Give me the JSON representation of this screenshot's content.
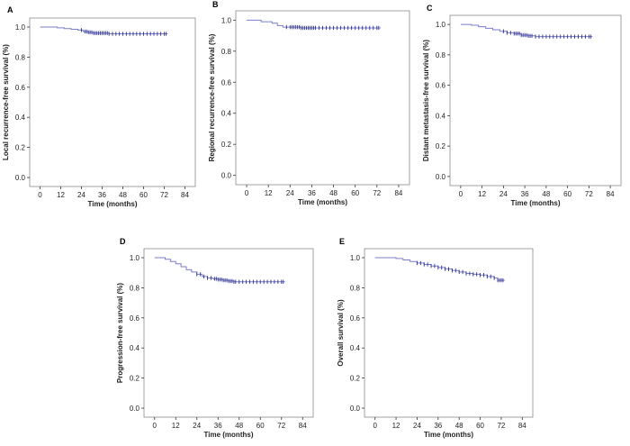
{
  "chart_data": [
    {
      "panel": "A",
      "type": "line",
      "title": "",
      "xlabel": "Time (months)",
      "ylabel": "Local recurrence-free survival (%)",
      "x_ticks": [
        0,
        12,
        24,
        36,
        48,
        60,
        72,
        84
      ],
      "y_ticks": [
        "0.0",
        "0.2",
        "0.4",
        "0.6",
        "0.8",
        "1.0"
      ],
      "xlim": [
        -6,
        90
      ],
      "ylim": [
        -0.06,
        1.06
      ],
      "series": [
        {
          "name": "Local recurrence-free survival",
          "x": [
            0,
            10,
            14,
            18,
            22,
            25,
            28,
            31,
            40,
            74
          ],
          "y": [
            1.0,
            0.995,
            0.99,
            0.985,
            0.98,
            0.97,
            0.965,
            0.96,
            0.955,
            0.955
          ],
          "censored_x": [
            24,
            26,
            27,
            28,
            29,
            30,
            31,
            32,
            33,
            34,
            35,
            36,
            37,
            38,
            39,
            40,
            42,
            44,
            46,
            48,
            50,
            52,
            54,
            56,
            58,
            60,
            62,
            64,
            66,
            68,
            70,
            72,
            73
          ]
        }
      ]
    },
    {
      "panel": "B",
      "type": "line",
      "title": "",
      "xlabel": "Time (months)",
      "ylabel": "Regional recurrence-free survival (%)",
      "x_ticks": [
        0,
        12,
        24,
        36,
        48,
        60,
        72,
        84
      ],
      "y_ticks": [
        "0.0",
        "0.2",
        "0.4",
        "0.6",
        "0.8",
        "1.0"
      ],
      "xlim": [
        -6,
        90
      ],
      "ylim": [
        -0.06,
        1.06
      ],
      "series": [
        {
          "name": "Regional recurrence-free survival",
          "x": [
            0,
            8,
            14,
            17,
            20,
            24,
            30,
            74
          ],
          "y": [
            1.0,
            0.99,
            0.98,
            0.965,
            0.955,
            0.955,
            0.95,
            0.95
          ],
          "censored_x": [
            22,
            24,
            25,
            26,
            27,
            28,
            29,
            30,
            31,
            32,
            33,
            34,
            35,
            36,
            37,
            38,
            40,
            42,
            44,
            46,
            48,
            50,
            52,
            54,
            56,
            58,
            60,
            62,
            64,
            66,
            68,
            70,
            72,
            73
          ]
        }
      ]
    },
    {
      "panel": "C",
      "type": "line",
      "title": "",
      "xlabel": "Time (months)",
      "ylabel": "Distant metastasis-free survival (%)",
      "x_ticks": [
        0,
        12,
        24,
        36,
        48,
        60,
        72,
        84
      ],
      "y_ticks": [
        "0.0",
        "0.2",
        "0.4",
        "0.6",
        "0.8",
        "1.0"
      ],
      "xlim": [
        -6,
        90
      ],
      "ylim": [
        -0.06,
        1.06
      ],
      "series": [
        {
          "name": "Distant metastasis-free survival",
          "x": [
            0,
            6,
            10,
            14,
            18,
            22,
            26,
            30,
            34,
            38,
            42,
            74
          ],
          "y": [
            1.0,
            0.995,
            0.985,
            0.975,
            0.965,
            0.955,
            0.945,
            0.94,
            0.93,
            0.925,
            0.92,
            0.92
          ],
          "censored_x": [
            24,
            26,
            28,
            30,
            31,
            32,
            33,
            34,
            35,
            36,
            37,
            38,
            39,
            40,
            42,
            44,
            46,
            48,
            50,
            52,
            54,
            56,
            58,
            60,
            62,
            64,
            66,
            68,
            70,
            72,
            73
          ]
        }
      ]
    },
    {
      "panel": "D",
      "type": "line",
      "title": "",
      "xlabel": "Time (months)",
      "ylabel": "Progression-free survival (%)",
      "x_ticks": [
        0,
        12,
        24,
        36,
        48,
        60,
        72,
        84
      ],
      "y_ticks": [
        "0.0",
        "0.2",
        "0.4",
        "0.6",
        "0.8",
        "1.0"
      ],
      "xlim": [
        -6,
        90
      ],
      "ylim": [
        -0.06,
        1.06
      ],
      "series": [
        {
          "name": "Progression-free survival",
          "x": [
            0,
            6,
            9,
            12,
            15,
            18,
            21,
            24,
            27,
            30,
            33,
            36,
            39,
            42,
            45,
            74
          ],
          "y": [
            1.0,
            0.99,
            0.975,
            0.96,
            0.94,
            0.92,
            0.905,
            0.89,
            0.875,
            0.865,
            0.86,
            0.855,
            0.85,
            0.845,
            0.84,
            0.84
          ],
          "censored_x": [
            24,
            26,
            28,
            30,
            32,
            34,
            35,
            36,
            37,
            38,
            39,
            40,
            41,
            42,
            43,
            44,
            45,
            46,
            48,
            50,
            52,
            54,
            56,
            58,
            60,
            62,
            64,
            66,
            68,
            70,
            72,
            73
          ]
        }
      ]
    },
    {
      "panel": "E",
      "type": "line",
      "title": "",
      "xlabel": "Time (months)",
      "ylabel": "Overall survival (%)",
      "x_ticks": [
        0,
        12,
        24,
        36,
        48,
        60,
        72,
        84
      ],
      "y_ticks": [
        "0.0",
        "0.2",
        "0.4",
        "0.6",
        "0.8",
        "1.0"
      ],
      "xlim": [
        -6,
        90
      ],
      "ylim": [
        -0.06,
        1.06
      ],
      "series": [
        {
          "name": "Overall survival",
          "x": [
            0,
            12,
            16,
            20,
            24,
            28,
            32,
            36,
            40,
            44,
            48,
            52,
            56,
            60,
            64,
            68,
            70,
            74
          ],
          "y": [
            1.0,
            0.995,
            0.985,
            0.975,
            0.965,
            0.955,
            0.945,
            0.935,
            0.925,
            0.915,
            0.905,
            0.895,
            0.89,
            0.885,
            0.875,
            0.865,
            0.85,
            0.85
          ],
          "censored_x": [
            24,
            26,
            28,
            30,
            32,
            34,
            36,
            38,
            40,
            42,
            44,
            46,
            48,
            50,
            52,
            54,
            56,
            58,
            60,
            62,
            64,
            66,
            68,
            70,
            71,
            72,
            73
          ]
        }
      ]
    }
  ]
}
